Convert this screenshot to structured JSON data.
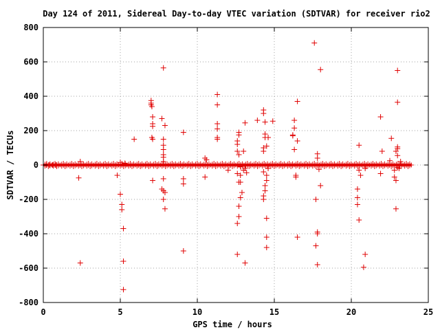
{
  "chart_data": {
    "type": "scatter",
    "title": "Day 124 of 2011, Sidereal Day-to-day VTEC variation (SDTVAR) for receiver rio2",
    "xlabel": "GPS time / hours",
    "ylabel": "SDTVAR / TECUs",
    "xlim": [
      0,
      25
    ],
    "ylim": [
      -800,
      800
    ],
    "xticks": [
      0,
      5,
      10,
      15,
      20,
      25
    ],
    "yticks": [
      -800,
      -600,
      -400,
      -200,
      0,
      200,
      400,
      600,
      800
    ],
    "grid": true,
    "marker": "+",
    "color": "#e00000",
    "baseline_band": {
      "x_start": 0.0,
      "x_end": 23.9,
      "y_min": -8,
      "y_max": 8
    },
    "points": [
      [
        0.0,
        0
      ],
      [
        0.2,
        0
      ],
      [
        0.4,
        0
      ],
      [
        0.6,
        0
      ],
      [
        0.8,
        0
      ],
      [
        2.3,
        -75
      ],
      [
        2.4,
        -570
      ],
      [
        2.4,
        20
      ],
      [
        4.8,
        -60
      ],
      [
        5.0,
        15
      ],
      [
        5.0,
        -170
      ],
      [
        5.1,
        -230
      ],
      [
        5.1,
        -260
      ],
      [
        5.2,
        -370
      ],
      [
        5.2,
        -560
      ],
      [
        5.2,
        -725
      ],
      [
        5.3,
        10
      ],
      [
        5.9,
        150
      ],
      [
        7.0,
        375
      ],
      [
        7.0,
        360
      ],
      [
        7.0,
        350
      ],
      [
        7.05,
        340
      ],
      [
        7.1,
        280
      ],
      [
        7.1,
        240
      ],
      [
        7.1,
        225
      ],
      [
        7.05,
        160
      ],
      [
        7.1,
        150
      ],
      [
        7.1,
        -90
      ],
      [
        7.7,
        270
      ],
      [
        7.7,
        -140
      ],
      [
        7.8,
        565
      ],
      [
        7.8,
        150
      ],
      [
        7.8,
        115
      ],
      [
        7.8,
        90
      ],
      [
        7.8,
        60
      ],
      [
        7.8,
        45
      ],
      [
        7.8,
        20
      ],
      [
        7.8,
        -80
      ],
      [
        7.8,
        -150
      ],
      [
        7.8,
        -200
      ],
      [
        7.9,
        230
      ],
      [
        7.9,
        -160
      ],
      [
        7.9,
        -255
      ],
      [
        9.1,
        -500
      ],
      [
        9.1,
        190
      ],
      [
        9.1,
        -80
      ],
      [
        9.1,
        -110
      ],
      [
        10.5,
        -70
      ],
      [
        10.5,
        40
      ],
      [
        10.6,
        30
      ],
      [
        11.3,
        410
      ],
      [
        11.3,
        350
      ],
      [
        11.3,
        240
      ],
      [
        11.3,
        210
      ],
      [
        11.3,
        160
      ],
      [
        11.3,
        150
      ],
      [
        12.0,
        -30
      ],
      [
        12.6,
        -520
      ],
      [
        12.6,
        140
      ],
      [
        12.6,
        120
      ],
      [
        12.6,
        -340
      ],
      [
        12.6,
        80
      ],
      [
        12.6,
        -50
      ],
      [
        12.7,
        -300
      ],
      [
        12.7,
        190
      ],
      [
        12.7,
        175
      ],
      [
        12.7,
        -100
      ],
      [
        12.7,
        -240
      ],
      [
        12.7,
        60
      ],
      [
        12.8,
        -190
      ],
      [
        12.8,
        -60
      ],
      [
        12.8,
        -10
      ],
      [
        12.8,
        -100
      ],
      [
        12.9,
        -160
      ],
      [
        13.0,
        80
      ],
      [
        13.0,
        -30
      ],
      [
        13.1,
        245
      ],
      [
        13.1,
        -570
      ],
      [
        13.1,
        -20
      ],
      [
        13.2,
        -45
      ],
      [
        13.9,
        260
      ],
      [
        14.3,
        320
      ],
      [
        14.3,
        300
      ],
      [
        14.3,
        100
      ],
      [
        14.3,
        80
      ],
      [
        14.3,
        -200
      ],
      [
        14.3,
        -180
      ],
      [
        14.3,
        -40
      ],
      [
        14.4,
        250
      ],
      [
        14.4,
        180
      ],
      [
        14.4,
        160
      ],
      [
        14.4,
        -150
      ],
      [
        14.4,
        -120
      ],
      [
        14.5,
        -480
      ],
      [
        14.5,
        -420
      ],
      [
        14.5,
        -310
      ],
      [
        14.5,
        110
      ],
      [
        14.5,
        -60
      ],
      [
        14.5,
        -90
      ],
      [
        14.6,
        160
      ],
      [
        14.6,
        -20
      ],
      [
        14.9,
        255
      ],
      [
        16.2,
        175
      ],
      [
        16.2,
        170
      ],
      [
        16.3,
        215
      ],
      [
        16.3,
        260
      ],
      [
        16.3,
        90
      ],
      [
        16.4,
        -60
      ],
      [
        16.4,
        -70
      ],
      [
        16.5,
        -420
      ],
      [
        16.5,
        370
      ],
      [
        16.5,
        140
      ],
      [
        17.6,
        710
      ],
      [
        17.7,
        -200
      ],
      [
        17.7,
        -470
      ],
      [
        17.8,
        -580
      ],
      [
        17.8,
        -390
      ],
      [
        17.8,
        -400
      ],
      [
        17.8,
        65
      ],
      [
        17.8,
        40
      ],
      [
        17.9,
        -25
      ],
      [
        18.0,
        555
      ],
      [
        18.0,
        -120
      ],
      [
        20.4,
        -140
      ],
      [
        20.4,
        -190
      ],
      [
        20.4,
        -230
      ],
      [
        20.5,
        -320
      ],
      [
        20.5,
        115
      ],
      [
        20.5,
        -30
      ],
      [
        20.6,
        -60
      ],
      [
        20.8,
        -595
      ],
      [
        20.9,
        -520
      ],
      [
        20.9,
        -20
      ],
      [
        21.9,
        280
      ],
      [
        21.9,
        -50
      ],
      [
        22.0,
        80
      ],
      [
        22.5,
        25
      ],
      [
        22.6,
        155
      ],
      [
        22.8,
        -30
      ],
      [
        22.8,
        -70
      ],
      [
        22.9,
        80
      ],
      [
        22.9,
        -90
      ],
      [
        22.9,
        -255
      ],
      [
        23.0,
        550
      ],
      [
        23.0,
        365
      ],
      [
        23.0,
        105
      ],
      [
        23.0,
        95
      ],
      [
        23.0,
        55
      ],
      [
        23.0,
        -15
      ],
      [
        23.1,
        -20
      ],
      [
        23.2,
        20
      ]
    ]
  }
}
